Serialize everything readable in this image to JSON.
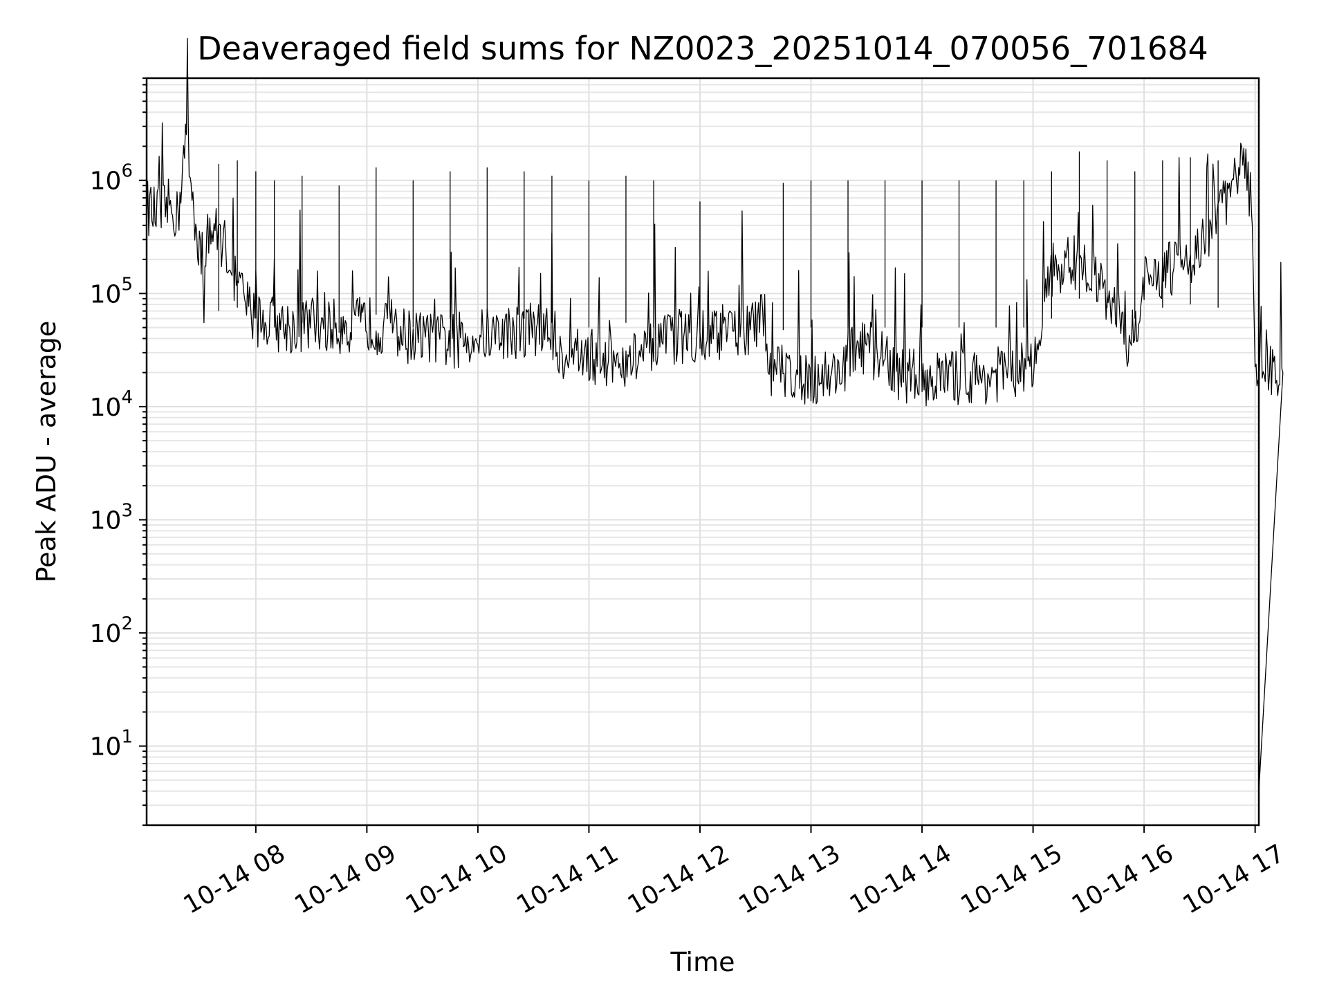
{
  "chart_data": {
    "type": "line",
    "title": "Deaveraged field sums for NZ0023_20251014_070056_701684",
    "xlabel": "Time",
    "ylabel": "Peak ADU - average",
    "yscale": "log",
    "xlim": [
      "2025-10-14 07:01",
      "2025-10-14 17:02"
    ],
    "ylim": [
      2,
      8000000
    ],
    "grid": true,
    "x_ticks": [
      {
        "label": "10-14 08",
        "t": "2025-10-14 08:00"
      },
      {
        "label": "10-14 09",
        "t": "2025-10-14 09:00"
      },
      {
        "label": "10-14 10",
        "t": "2025-10-14 10:00"
      },
      {
        "label": "10-14 11",
        "t": "2025-10-14 11:00"
      },
      {
        "label": "10-14 12",
        "t": "2025-10-14 12:00"
      },
      {
        "label": "10-14 13",
        "t": "2025-10-14 13:00"
      },
      {
        "label": "10-14 14",
        "t": "2025-10-14 14:00"
      },
      {
        "label": "10-14 15",
        "t": "2025-10-14 15:00"
      },
      {
        "label": "10-14 16",
        "t": "2025-10-14 16:00"
      },
      {
        "label": "10-14 17",
        "t": "2025-10-14 17:00"
      }
    ],
    "y_ticks": [
      {
        "base": "10",
        "exp": "1",
        "value": 10
      },
      {
        "base": "10",
        "exp": "2",
        "value": 100
      },
      {
        "base": "10",
        "exp": "3",
        "value": 1000
      },
      {
        "base": "10",
        "exp": "4",
        "value": 10000
      },
      {
        "base": "10",
        "exp": "5",
        "value": 100000
      },
      {
        "base": "10",
        "exp": "6",
        "value": 1000000
      }
    ],
    "series": [
      {
        "color": "#000000",
        "points": [
          [
            "2025-10-14 07:01",
            600000
          ],
          [
            "2025-10-14 07:05",
            500000
          ],
          [
            "2025-10-14 07:10",
            550000
          ],
          [
            "2025-10-14 07:15",
            600000
          ],
          [
            "2025-10-14 07:18",
            450000
          ],
          [
            "2025-10-14 07:20",
            1200000
          ],
          [
            "2025-10-14 07:22",
            2000000
          ],
          [
            "2025-10-14 07:23",
            4000000
          ],
          [
            "2025-10-14 07:24",
            1500000
          ],
          [
            "2025-10-14 07:25",
            900000
          ],
          [
            "2025-10-14 07:27",
            500000
          ],
          [
            "2025-10-14 07:29",
            300000
          ],
          [
            "2025-10-14 07:31",
            200000
          ],
          [
            "2025-10-14 07:32",
            85000
          ],
          [
            "2025-10-14 07:34",
            400000
          ],
          [
            "2025-10-14 07:38",
            350000
          ],
          [
            "2025-10-14 07:42",
            300000
          ],
          [
            "2025-10-14 07:46",
            200000
          ],
          [
            "2025-10-14 07:50",
            120000
          ],
          [
            "2025-10-14 07:55",
            80000
          ],
          [
            "2025-10-14 08:00",
            60000
          ],
          [
            "2025-10-14 08:10",
            55000
          ],
          [
            "2025-10-14 08:20",
            50000
          ],
          [
            "2025-10-14 08:30",
            55000
          ],
          [
            "2025-10-14 08:45",
            50000
          ],
          [
            "2025-10-14 09:00",
            55000
          ],
          [
            "2025-10-14 09:15",
            45000
          ],
          [
            "2025-10-14 09:30",
            40000
          ],
          [
            "2025-10-14 09:45",
            38000
          ],
          [
            "2025-10-14 10:00",
            42000
          ],
          [
            "2025-10-14 10:15",
            45000
          ],
          [
            "2025-10-14 10:30",
            50000
          ],
          [
            "2025-10-14 10:40",
            45000
          ],
          [
            "2025-10-14 10:45",
            30000
          ],
          [
            "2025-10-14 11:00",
            28000
          ],
          [
            "2025-10-14 11:15",
            25000
          ],
          [
            "2025-10-14 11:30",
            28000
          ],
          [
            "2025-10-14 11:45",
            40000
          ],
          [
            "2025-10-14 12:00",
            45000
          ],
          [
            "2025-10-14 12:15",
            45000
          ],
          [
            "2025-10-14 12:30",
            50000
          ],
          [
            "2025-10-14 12:35",
            60000
          ],
          [
            "2025-10-14 12:38",
            22000
          ],
          [
            "2025-10-14 12:50",
            20000
          ],
          [
            "2025-10-14 13:00",
            18000
          ],
          [
            "2025-10-14 13:15",
            20000
          ],
          [
            "2025-10-14 13:25",
            35000
          ],
          [
            "2025-10-14 13:35",
            30000
          ],
          [
            "2025-10-14 13:45",
            20000
          ],
          [
            "2025-10-14 14:00",
            18000
          ],
          [
            "2025-10-14 14:15",
            18000
          ],
          [
            "2025-10-14 14:30",
            18000
          ],
          [
            "2025-10-14 14:45",
            20000
          ],
          [
            "2025-10-14 15:00",
            22000
          ],
          [
            "2025-10-14 15:05",
            30000
          ],
          [
            "2025-10-14 15:08",
            150000
          ],
          [
            "2025-10-14 15:20",
            200000
          ],
          [
            "2025-10-14 15:30",
            150000
          ],
          [
            "2025-10-14 15:40",
            100000
          ],
          [
            "2025-10-14 15:48",
            60000
          ],
          [
            "2025-10-14 15:52",
            30000
          ],
          [
            "2025-10-14 15:56",
            60000
          ],
          [
            "2025-10-14 16:00",
            120000
          ],
          [
            "2025-10-14 16:10",
            150000
          ],
          [
            "2025-10-14 16:20",
            180000
          ],
          [
            "2025-10-14 16:30",
            250000
          ],
          [
            "2025-10-14 16:40",
            500000
          ],
          [
            "2025-10-14 16:45",
            700000
          ],
          [
            "2025-10-14 16:50",
            1200000
          ],
          [
            "2025-10-14 16:55",
            1300000
          ],
          [
            "2025-10-14 16:58",
            600000
          ],
          [
            "2025-10-14 16:59",
            100000
          ],
          [
            "2025-10-14 17:00",
            20000
          ],
          [
            "2025-10-14 17:01",
            22000
          ],
          [
            "2025-10-14 17:015",
            20000
          ],
          [
            "2025-10-14 17:02",
            4
          ]
        ],
        "spikes": [
          [
            "2025-10-14 07:40",
            1400000
          ],
          [
            "2025-10-14 07:50",
            1500000
          ],
          [
            "2025-10-14 08:00",
            1200000
          ],
          [
            "2025-10-14 08:10",
            1000000
          ],
          [
            "2025-10-14 08:25",
            1100000
          ],
          [
            "2025-10-14 08:45",
            900000
          ],
          [
            "2025-10-14 09:05",
            1300000
          ],
          [
            "2025-10-14 09:25",
            1000000
          ],
          [
            "2025-10-14 09:45",
            1200000
          ],
          [
            "2025-10-14 10:05",
            1300000
          ],
          [
            "2025-10-14 10:25",
            1200000
          ],
          [
            "2025-10-14 10:40",
            1100000
          ],
          [
            "2025-10-14 11:00",
            1000000
          ],
          [
            "2025-10-14 11:20",
            1100000
          ],
          [
            "2025-10-14 11:35",
            1000000
          ],
          [
            "2025-10-14 12:00",
            650000
          ],
          [
            "2025-10-14 12:45",
            950000
          ],
          [
            "2025-10-14 13:00",
            1000000
          ],
          [
            "2025-10-14 13:20",
            1000000
          ],
          [
            "2025-10-14 13:40",
            1000000
          ],
          [
            "2025-10-14 14:00",
            1000000
          ],
          [
            "2025-10-14 14:20",
            1000000
          ],
          [
            "2025-10-14 14:40",
            1000000
          ],
          [
            "2025-10-14 14:55",
            1000000
          ],
          [
            "2025-10-14 15:10",
            1200000
          ],
          [
            "2025-10-14 15:25",
            1800000
          ],
          [
            "2025-10-14 15:40",
            1500000
          ],
          [
            "2025-10-14 15:55",
            1200000
          ],
          [
            "2025-10-14 16:10",
            1500000
          ],
          [
            "2025-10-14 16:25",
            1600000
          ],
          [
            "2025-10-14 16:40",
            1500000
          ]
        ]
      }
    ]
  }
}
